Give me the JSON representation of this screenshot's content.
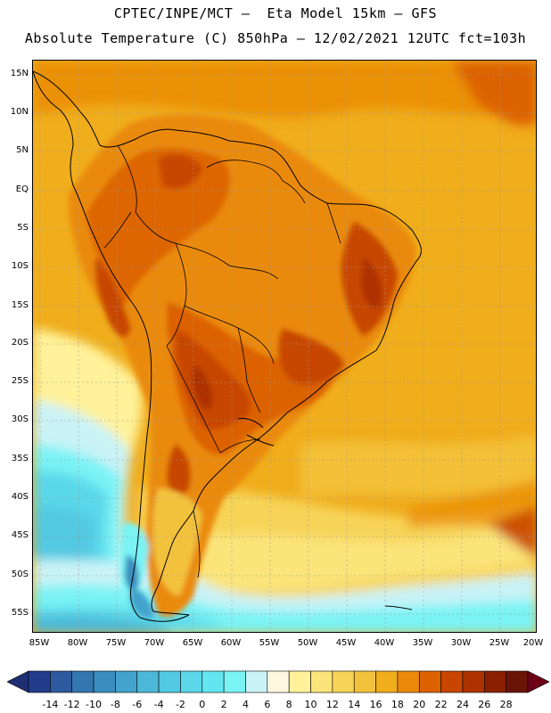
{
  "header": {
    "line1": "CPTEC/INPE/MCT —  Eta Model 15km — GFS",
    "line2": "Absolute Temperature (C) 850hPa — 12/02/2021 12UTC fct=103h"
  },
  "map": {
    "lat_labels": [
      "15N",
      "10N",
      "5N",
      "EQ",
      "5S",
      "10S",
      "15S",
      "20S",
      "25S",
      "30S",
      "35S",
      "40S",
      "45S",
      "50S",
      "55S"
    ],
    "lon_labels": [
      "85W",
      "80W",
      "75W",
      "70W",
      "65W",
      "60W",
      "55W",
      "50W",
      "45W",
      "40W",
      "35W",
      "30W",
      "25W",
      "20W"
    ]
  },
  "legend": {
    "labels": [
      "-14",
      "-12",
      "-10",
      "-8",
      "-6",
      "-4",
      "-2",
      "0",
      "2",
      "4",
      "6",
      "8",
      "10",
      "12",
      "14",
      "16",
      "18",
      "20",
      "22",
      "24",
      "26",
      "28"
    ],
    "colors": [
      "#243c8c",
      "#2d5a9e",
      "#3477b0",
      "#3b8dbf",
      "#43a3cc",
      "#4bb8d8",
      "#52c9e2",
      "#5ad8ea",
      "#63e6f0",
      "#7af3f5",
      "#c9f3f7",
      "#fff7df",
      "#fff29a",
      "#fbe47a",
      "#f7d458",
      "#f3c23c",
      "#f0ad1c",
      "#ea8a08",
      "#dc6200",
      "#c84600",
      "#ad3200",
      "#8a2000",
      "#6a1408"
    ],
    "low_arrow_color": "#1e2f74",
    "high_arrow_color": "#6e0018"
  }
}
